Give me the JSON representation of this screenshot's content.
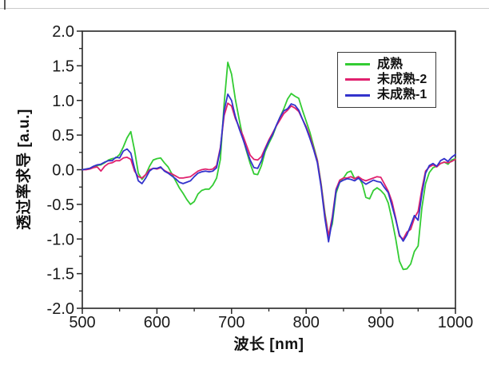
{
  "figure": {
    "background": "#ffffff",
    "frame_color": "#262626",
    "tick_label_color": "#1a1a1a"
  },
  "chart_data": {
    "type": "line",
    "title": "",
    "xlabel": "波长 [nm]",
    "ylabel": "透过率求导 [a.u.]",
    "xlim": [
      500,
      1000
    ],
    "ylim": [
      -2.0,
      2.0
    ],
    "grid": false,
    "legend_position": "upper right",
    "x_major_ticks": [
      500,
      600,
      700,
      800,
      900,
      1000
    ],
    "x_minor_ticks": [
      550,
      650,
      750,
      850,
      950
    ],
    "y_tick_labels": [
      "2.0",
      "1.5",
      "1.0",
      "0.5",
      "0.0",
      "-0.5",
      "-1.0",
      "-1.5",
      "-2.0"
    ],
    "y_minor_ticks": [
      1.75,
      1.25,
      0.75,
      0.25,
      -0.25,
      -0.75,
      -1.25,
      -1.75
    ],
    "x_start": 500,
    "x_step": 5,
    "series": [
      {
        "name": "成熟",
        "color": "#33CC33",
        "values": [
          0.0,
          0.01,
          0.02,
          0.04,
          0.06,
          0.07,
          0.1,
          0.14,
          0.16,
          0.17,
          0.22,
          0.33,
          0.46,
          0.55,
          0.28,
          -0.05,
          -0.14,
          -0.07,
          0.05,
          0.14,
          0.16,
          0.17,
          0.1,
          0.04,
          -0.06,
          -0.16,
          -0.26,
          -0.34,
          -0.43,
          -0.5,
          -0.46,
          -0.35,
          -0.3,
          -0.28,
          -0.28,
          -0.22,
          -0.12,
          0.15,
          0.95,
          1.55,
          1.38,
          1.02,
          0.74,
          0.47,
          0.27,
          0.09,
          -0.06,
          -0.07,
          0.06,
          0.26,
          0.38,
          0.49,
          0.63,
          0.76,
          0.88,
          1.02,
          1.1,
          1.06,
          1.03,
          0.86,
          0.7,
          0.54,
          0.34,
          0.14,
          -0.2,
          -0.62,
          -0.95,
          -0.78,
          -0.34,
          -0.18,
          -0.12,
          -0.04,
          -0.02,
          -0.13,
          -0.1,
          -0.2,
          -0.4,
          -0.42,
          -0.3,
          -0.26,
          -0.3,
          -0.36,
          -0.48,
          -0.72,
          -1.0,
          -1.32,
          -1.44,
          -1.43,
          -1.36,
          -1.18,
          -1.1,
          -0.55,
          -0.2,
          -0.04,
          0.03,
          0.05,
          0.09,
          0.11,
          0.08,
          0.14,
          0.16
        ]
      },
      {
        "name": "未成熟-2",
        "color": "#E0216E",
        "values": [
          0.0,
          0.0,
          0.01,
          0.03,
          0.04,
          -0.02,
          0.05,
          0.09,
          0.1,
          0.13,
          0.13,
          0.17,
          0.18,
          0.15,
          -0.02,
          -0.1,
          -0.12,
          -0.07,
          0.0,
          0.02,
          0.01,
          0.03,
          -0.01,
          -0.04,
          -0.06,
          -0.09,
          -0.12,
          -0.12,
          -0.11,
          -0.1,
          -0.06,
          -0.02,
          0.0,
          0.01,
          0.0,
          0.01,
          0.06,
          0.32,
          0.78,
          0.96,
          0.92,
          0.74,
          0.62,
          0.5,
          0.35,
          0.21,
          0.15,
          0.14,
          0.19,
          0.31,
          0.43,
          0.53,
          0.63,
          0.72,
          0.81,
          0.86,
          0.92,
          0.89,
          0.84,
          0.73,
          0.62,
          0.48,
          0.31,
          0.13,
          -0.22,
          -0.65,
          -0.96,
          -0.68,
          -0.28,
          -0.15,
          -0.12,
          -0.12,
          -0.1,
          -0.13,
          -0.1,
          -0.14,
          -0.16,
          -0.14,
          -0.12,
          -0.1,
          -0.11,
          -0.21,
          -0.31,
          -0.46,
          -0.7,
          -0.96,
          -1.0,
          -0.9,
          -0.86,
          -0.7,
          -0.6,
          -0.28,
          -0.02,
          0.04,
          0.07,
          0.04,
          0.09,
          0.11,
          0.1,
          0.12,
          0.15
        ]
      },
      {
        "name": "未成熟-1",
        "color": "#3333CC",
        "values": [
          0.0,
          0.01,
          0.02,
          0.05,
          0.07,
          0.08,
          0.11,
          0.13,
          0.13,
          0.18,
          0.17,
          0.27,
          0.3,
          0.24,
          0.02,
          -0.16,
          -0.2,
          -0.12,
          -0.02,
          0.02,
          0.02,
          0.04,
          -0.02,
          -0.05,
          -0.09,
          -0.13,
          -0.18,
          -0.2,
          -0.18,
          -0.16,
          -0.1,
          -0.05,
          -0.03,
          -0.02,
          -0.03,
          -0.02,
          0.03,
          0.3,
          0.85,
          1.09,
          1.0,
          0.77,
          0.6,
          0.45,
          0.29,
          0.14,
          0.03,
          0.02,
          0.13,
          0.29,
          0.41,
          0.51,
          0.64,
          0.76,
          0.85,
          0.88,
          0.95,
          0.93,
          0.86,
          0.73,
          0.6,
          0.45,
          0.29,
          0.1,
          -0.25,
          -0.7,
          -1.04,
          -0.72,
          -0.3,
          -0.18,
          -0.15,
          -0.13,
          -0.14,
          -0.16,
          -0.12,
          -0.17,
          -0.21,
          -0.18,
          -0.15,
          -0.17,
          -0.18,
          -0.26,
          -0.33,
          -0.52,
          -0.72,
          -0.94,
          -1.03,
          -0.94,
          -0.8,
          -0.66,
          -0.73,
          -0.35,
          -0.05,
          0.06,
          0.09,
          0.05,
          0.13,
          0.16,
          0.12,
          0.18,
          0.22
        ]
      }
    ],
    "legend": {
      "entries": [
        "成熟",
        "未成熟-2",
        "未成熟-1"
      ]
    }
  }
}
